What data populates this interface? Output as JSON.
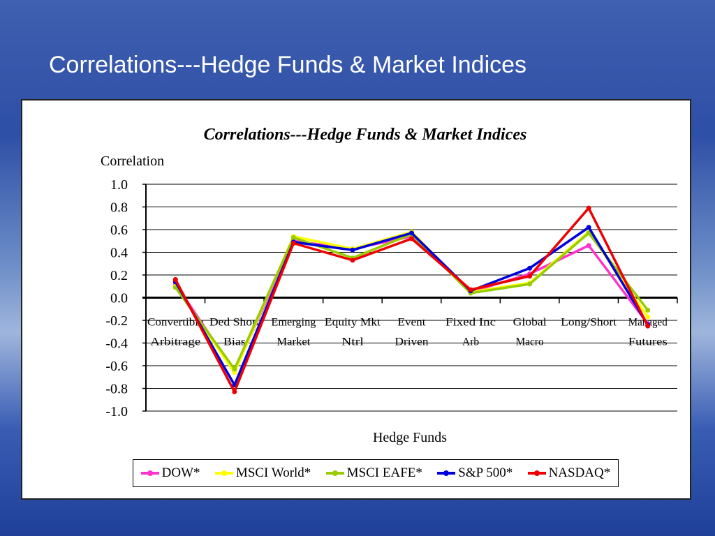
{
  "slide": {
    "title": "Correlations---Hedge Funds & Market Indices"
  },
  "chart_data": {
    "type": "line",
    "title": "Correlations---Hedge Funds & Market Indices",
    "xlabel": "Hedge Funds",
    "ylabel": "Correlation",
    "ylim": [
      -1.0,
      1.0
    ],
    "yticks": [
      "1.0",
      "0.8",
      "0.6",
      "0.4",
      "0.2",
      "0.0",
      "-0.2",
      "-0.4",
      "-0.6",
      "-0.8",
      "-1.0"
    ],
    "grid": true,
    "legend_position": "bottom",
    "categories": [
      [
        "Convertible",
        "Arbitrage"
      ],
      [
        "Ded Short",
        "Bias"
      ],
      [
        "Emerging",
        "Market"
      ],
      [
        "Equity Mkt",
        "Ntrl"
      ],
      [
        "Event",
        "Driven"
      ],
      [
        "Fixed Inc",
        "Arb"
      ],
      [
        "Global",
        "Macro"
      ],
      [
        "Long/Short",
        ""
      ],
      [
        "Managed",
        "Futures"
      ]
    ],
    "series": [
      {
        "name": "DOW*",
        "color": "#ff33cc",
        "values": [
          0.12,
          -0.65,
          0.5,
          0.43,
          0.54,
          0.05,
          0.21,
          0.46,
          -0.23
        ]
      },
      {
        "name": "MSCI World*",
        "color": "#ffff00",
        "values": [
          0.1,
          -0.66,
          0.54,
          0.43,
          0.58,
          0.05,
          0.13,
          0.58,
          -0.17
        ]
      },
      {
        "name": "MSCI EAFE*",
        "color": "#99cc00",
        "values": [
          0.09,
          -0.63,
          0.53,
          0.35,
          0.56,
          0.04,
          0.12,
          0.57,
          -0.11
        ]
      },
      {
        "name": "S&P 500*",
        "color": "#0000dd",
        "values": [
          0.14,
          -0.77,
          0.49,
          0.42,
          0.57,
          0.06,
          0.26,
          0.62,
          -0.24
        ]
      },
      {
        "name": "NASDAQ*",
        "color": "#ee0000",
        "values": [
          0.16,
          -0.83,
          0.48,
          0.33,
          0.52,
          0.07,
          0.19,
          0.79,
          -0.25
        ]
      }
    ]
  }
}
